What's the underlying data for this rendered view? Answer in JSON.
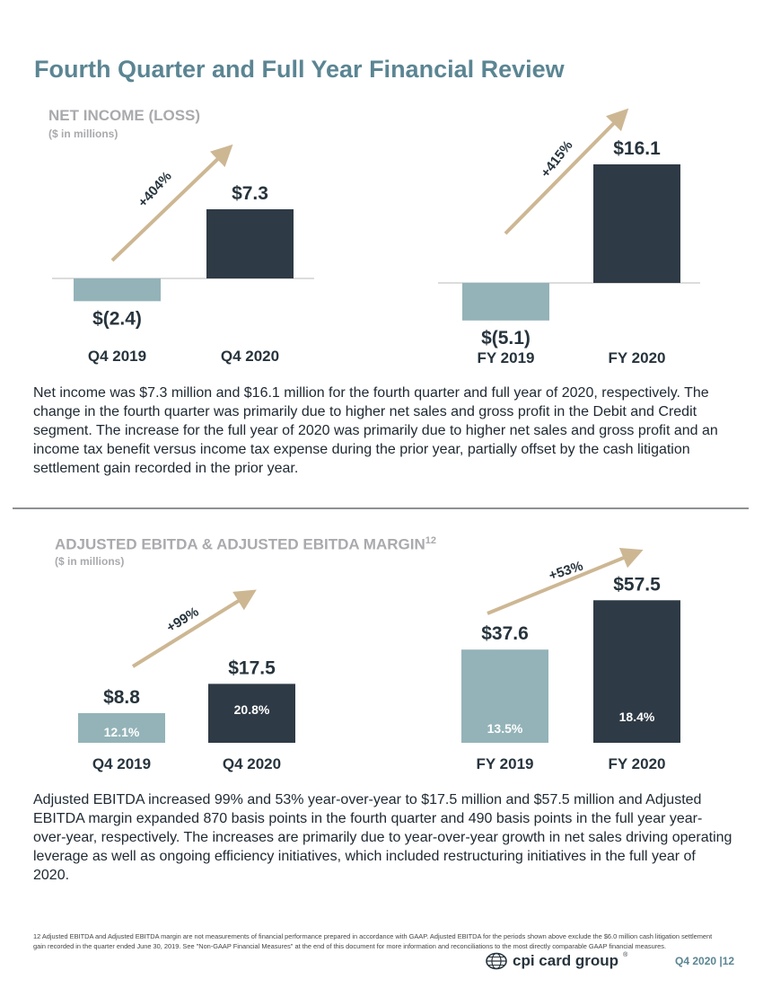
{
  "page": {
    "title": "Fourth Quarter and Full Year Financial Review",
    "footer_period": "Q4 2020",
    "page_number": "12",
    "logo_text": "cpi card group"
  },
  "net_income_section": {
    "title": "NET INCOME (LOSS)",
    "subtitle": "($ in millions)",
    "paragraph": "Net income was $7.3 million and $16.1 million for the fourth quarter and full year of 2020, respectively. The change in the fourth quarter was primarily due to higher net sales and gross profit in the Debit and Credit segment. The increase for the full year of 2020 was primarily due to higher net sales and gross profit and an income tax benefit versus income tax expense during the prior year, partially offset by the cash litigation settlement gain recorded in the prior year."
  },
  "ebitda_section": {
    "title": "ADJUSTED EBITDA & ADJUSTED EBITDA MARGIN",
    "title_sup": "12",
    "subtitle": "($ in millions)",
    "paragraph": "Adjusted EBITDA increased 99% and 53% year-over-year to $17.5 million and $57.5 million and Adjusted EBITDA margin expanded 870 basis points in the fourth quarter and 490 basis points in the full year year-over-year, respectively. The increases are primarily due to year-over-year growth in net sales driving operating leverage as well as ongoing efficiency initiatives, which included restructuring initiatives in the full year of 2020.",
    "footnote": "12 Adjusted EBITDA and Adjusted EBITDA margin are not measurements of financial performance prepared in accordance with GAAP. Adjusted EBITDA for the periods shown above exclude the $6.0 million cash litigation settlement gain recorded in the quarter ended June 30, 2019. See \"Non-GAAP Financial Measures\" at the end of this document for more information and reconciliations to the most directly comparable GAAP financial measures."
  },
  "colors": {
    "prior": "#93b3b8",
    "current": "#2e3a45",
    "arrow": "#cdb793",
    "title": "#5b8593",
    "section_title": "#a9aaad"
  },
  "chart_data": [
    {
      "type": "bar",
      "id": "ni-quarter",
      "categories": [
        "Q4 2019",
        "Q4 2020"
      ],
      "values": [
        -2.4,
        7.3
      ],
      "value_labels": [
        "$(2.4)",
        "$7.3"
      ],
      "growth_label": "+404%"
    },
    {
      "type": "bar",
      "id": "ni-year",
      "categories": [
        "FY 2019",
        "FY 2020"
      ],
      "values": [
        -5.1,
        16.1
      ],
      "value_labels": [
        "$(5.1)",
        "$16.1"
      ],
      "growth_label": "+415%"
    },
    {
      "type": "bar",
      "id": "ebitda-quarter",
      "categories": [
        "Q4 2019",
        "Q4 2020"
      ],
      "values": [
        8.8,
        17.5
      ],
      "value_labels": [
        "$8.8",
        "$17.5"
      ],
      "margins": [
        "12.1%",
        "20.8%"
      ],
      "growth_label": "+99%"
    },
    {
      "type": "bar",
      "id": "ebitda-year",
      "categories": [
        "FY 2019",
        "FY 2020"
      ],
      "values": [
        37.6,
        57.5
      ],
      "value_labels": [
        "$37.6",
        "$57.5"
      ],
      "margins": [
        "13.5%",
        "18.4%"
      ],
      "growth_label": "+53%"
    }
  ]
}
